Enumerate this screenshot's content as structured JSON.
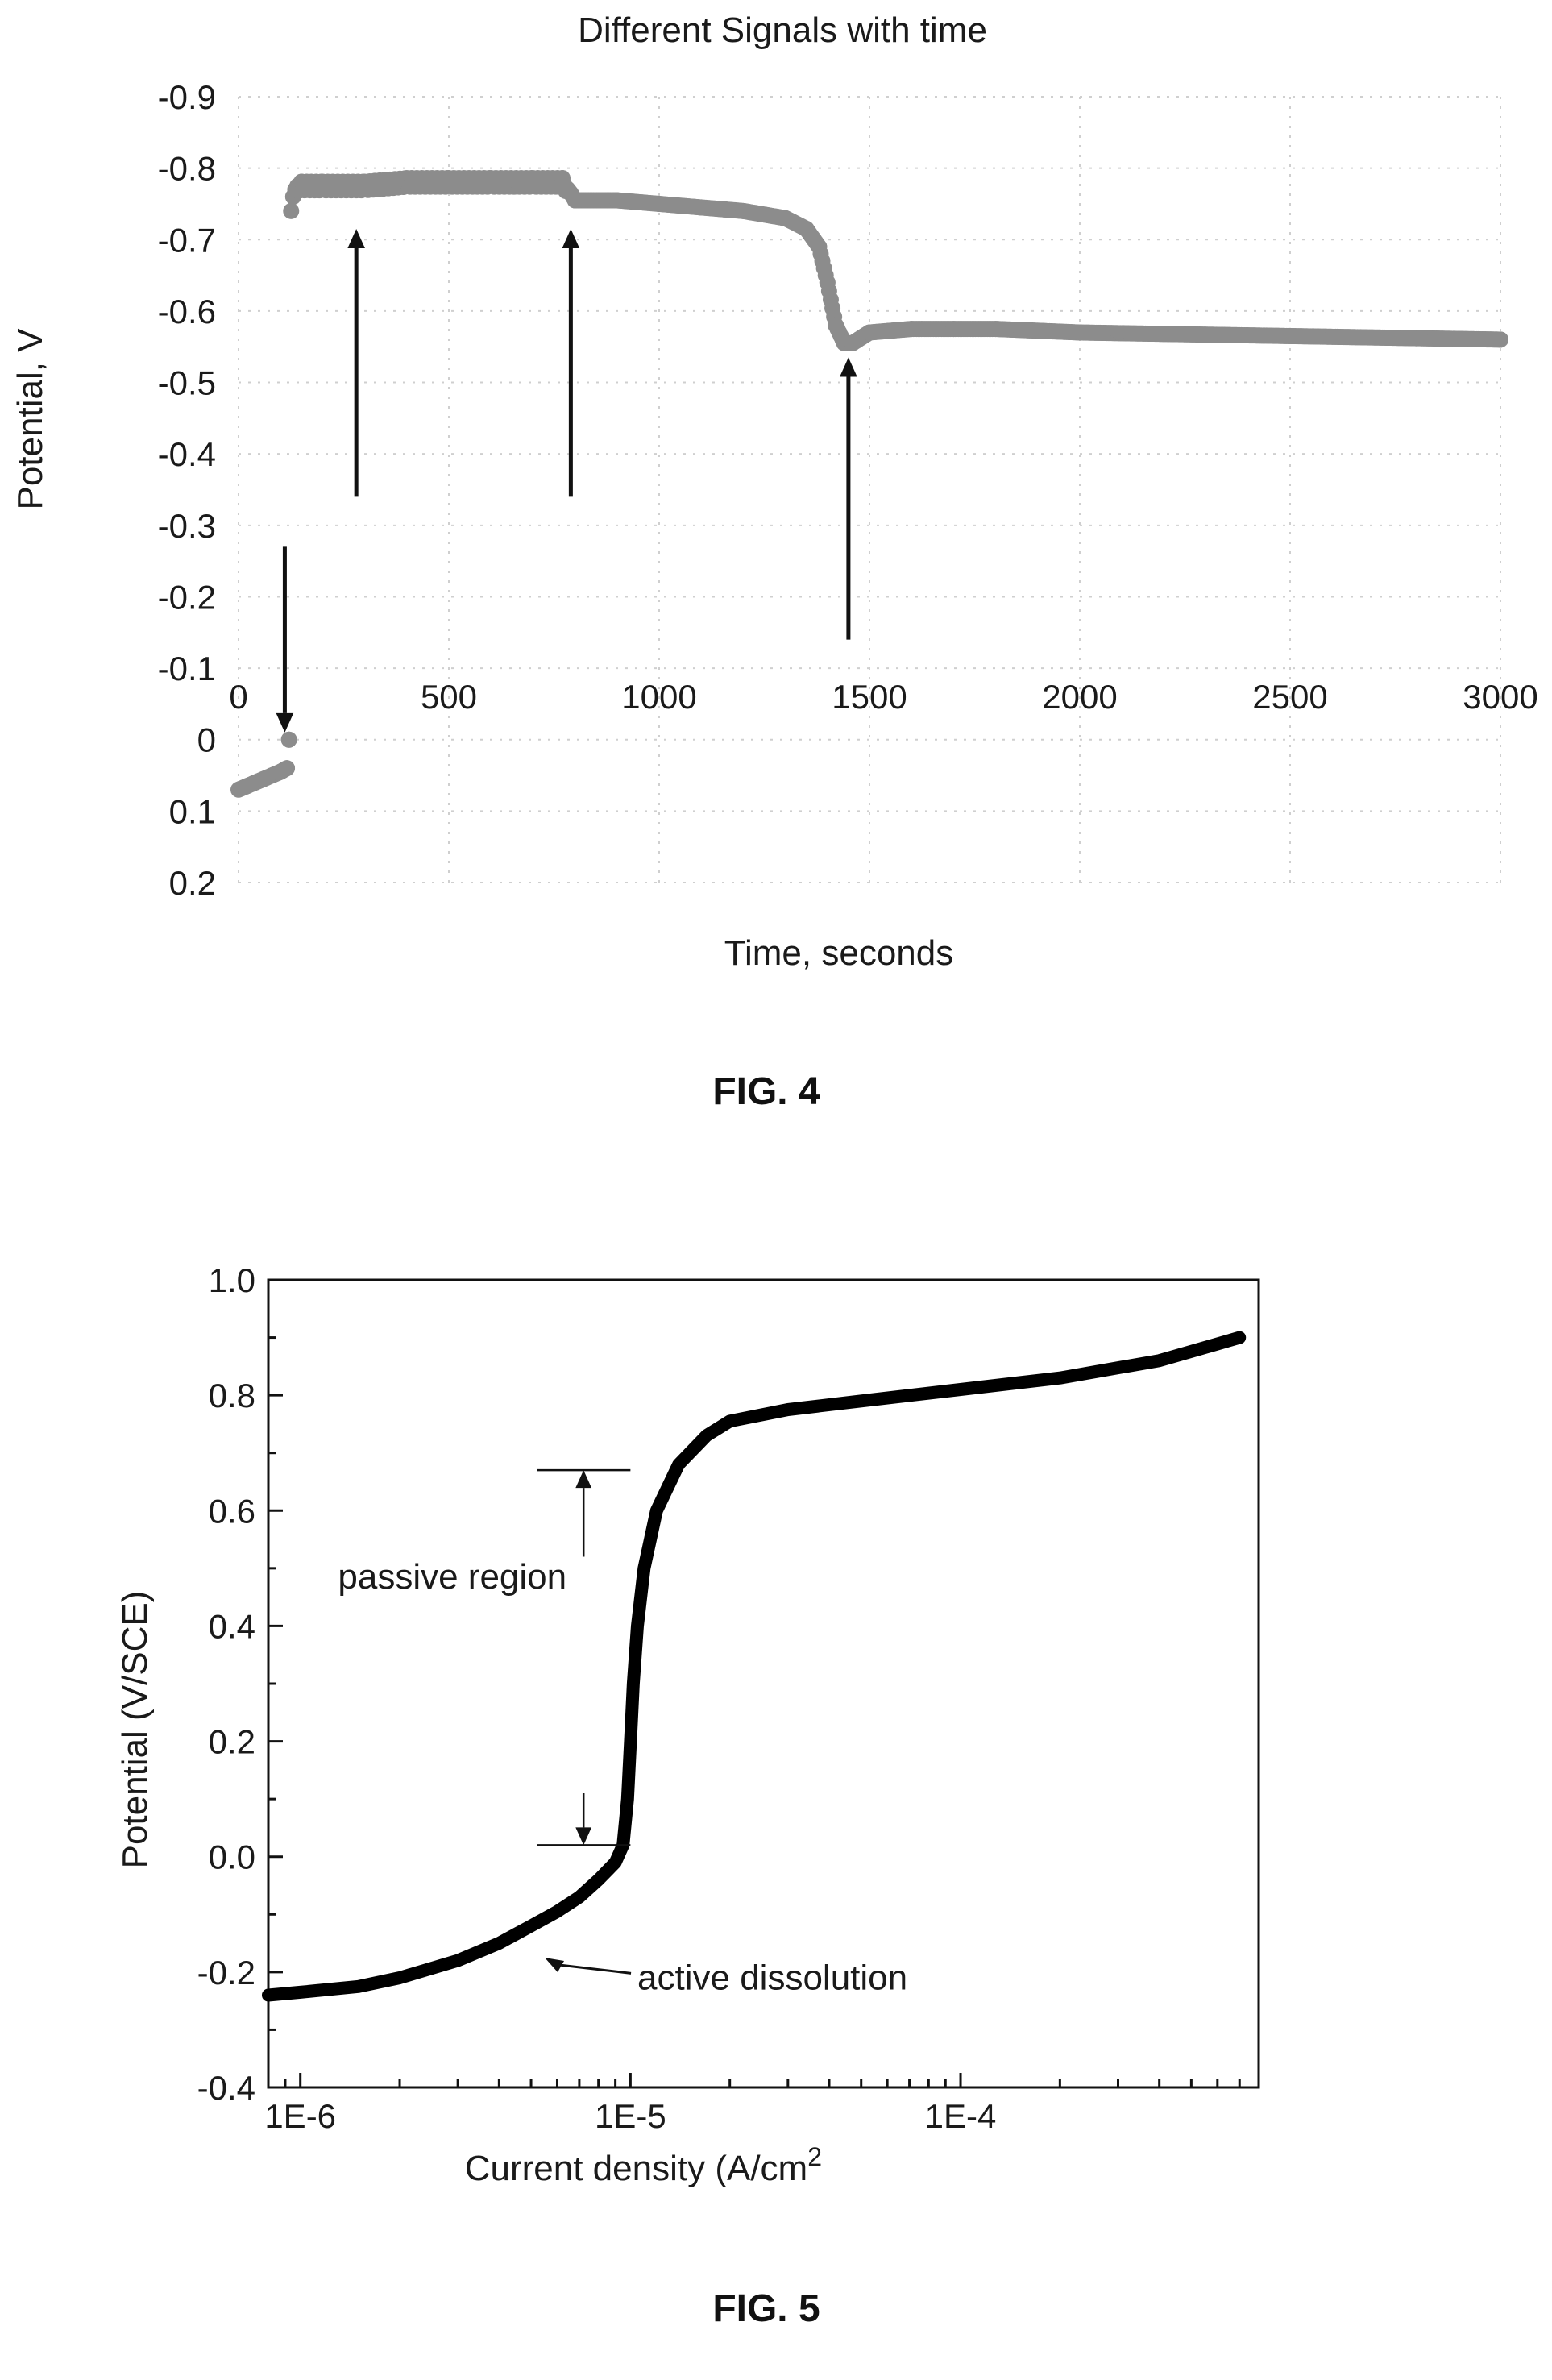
{
  "figures": [
    {
      "caption": "FIG. 4",
      "chart_data": {
        "type": "scatter",
        "title": "Different Signals with time",
        "xlabel": "Time, seconds",
        "ylabel": "Potential, V",
        "xlim": [
          0,
          3000
        ],
        "ylim": [
          0.2,
          -0.9
        ],
        "y_axis_inverted": true,
        "grid": true,
        "x_ticks": [
          0,
          500,
          1000,
          1500,
          2000,
          2500,
          3000
        ],
        "x_tick_labels": [
          "0",
          "500",
          "1000",
          "1500",
          "2000",
          "2500",
          "3000"
        ],
        "y_ticks": [
          -0.9,
          -0.8,
          -0.7,
          -0.6,
          -0.5,
          -0.4,
          -0.3,
          -0.2,
          -0.1,
          0,
          0.1,
          0.2
        ],
        "y_tick_labels": [
          "-0.9",
          "-0.8",
          "-0.7",
          "-0.6",
          "-0.5",
          "-0.4",
          "-0.3",
          "-0.2",
          "-0.1",
          "0",
          "0.1",
          "0.2"
        ],
        "series_color": "#8c8c8c",
        "series": [
          {
            "x": [
              0,
              20,
              40,
              60,
              80,
              100,
              115,
              120,
              125,
              130,
              135,
              140,
              150,
              200,
              300,
              400,
              500,
              600,
              700,
              770,
              790,
              800,
              900,
              1000,
              1100,
              1200,
              1300,
              1350,
              1380,
              1400,
              1420,
              1440,
              1460,
              1500,
              1600,
              1700,
              1800,
              2000,
              2200,
              2500,
              2800,
              3000
            ],
            "y": [
              0.07,
              0.065,
              0.06,
              0.055,
              0.05,
              0.045,
              0.04,
              0.0,
              -0.74,
              -0.76,
              -0.77,
              -0.775,
              -0.775,
              -0.775,
              -0.775,
              -0.78,
              -0.78,
              -0.78,
              -0.78,
              -0.78,
              -0.765,
              -0.755,
              -0.755,
              -0.75,
              -0.745,
              -0.74,
              -0.73,
              -0.715,
              -0.69,
              -0.64,
              -0.58,
              -0.555,
              -0.555,
              -0.57,
              -0.575,
              -0.575,
              -0.575,
              -0.57,
              -0.568,
              -0.565,
              -0.562,
              -0.56
            ]
          }
        ],
        "annotations": [
          {
            "type": "arrow",
            "x": 110,
            "y_from": -0.27,
            "y_to": -0.01,
            "direction": "down"
          },
          {
            "type": "arrow",
            "x": 280,
            "y_from": -0.34,
            "y_to": -0.715,
            "direction": "up"
          },
          {
            "type": "arrow",
            "x": 790,
            "y_from": -0.34,
            "y_to": -0.715,
            "direction": "up"
          },
          {
            "type": "arrow",
            "x": 1450,
            "y_from": -0.14,
            "y_to": -0.535,
            "direction": "up"
          }
        ]
      }
    },
    {
      "caption": "FIG. 5",
      "chart_data": {
        "type": "line",
        "xlabel_prefix": "Current density (A/cm",
        "xlabel_sup": "2",
        "ylabel": "Potential (V/SCE)",
        "x_scale": "log",
        "xlim": [
          8e-07,
          0.0008
        ],
        "ylim": [
          -0.4,
          1.0
        ],
        "grid": false,
        "x_ticks": [
          1e-06,
          1e-05,
          0.0001
        ],
        "x_tick_labels": [
          "1E-6",
          "1E-5",
          "1E-4"
        ],
        "y_ticks": [
          -0.4,
          -0.2,
          0.0,
          0.2,
          0.4,
          0.6,
          0.8,
          1.0
        ],
        "y_tick_labels": [
          "-0.4",
          "-0.2",
          "0.0",
          "0.2",
          "0.4",
          "0.6",
          "0.8",
          "1.0"
        ],
        "series_color": "#000000",
        "series": [
          {
            "x": [
              8e-07,
              1e-06,
              1.5e-06,
              2e-06,
              3e-06,
              4e-06,
              5e-06,
              6e-06,
              7e-06,
              8e-06,
              9e-06,
              9.5e-06,
              9.8e-06,
              1e-05,
              1.02e-05,
              1.05e-05,
              1.1e-05,
              1.2e-05,
              1.4e-05,
              1.7e-05,
              2e-05,
              3e-05,
              5e-05,
              0.0001,
              0.0002,
              0.0004,
              0.0007
            ],
            "y": [
              -0.24,
              -0.235,
              -0.225,
              -0.21,
              -0.18,
              -0.15,
              -0.12,
              -0.095,
              -0.07,
              -0.04,
              -0.01,
              0.02,
              0.1,
              0.2,
              0.3,
              0.4,
              0.5,
              0.6,
              0.68,
              0.73,
              0.755,
              0.775,
              0.79,
              0.81,
              0.83,
              0.86,
              0.9
            ]
          }
        ],
        "annotations": [
          {
            "id": "passive",
            "text": "passive region",
            "x": 1.3e-06,
            "y": 0.465
          },
          {
            "id": "active",
            "text": "active dissolution",
            "x": 1.05e-05,
            "y": -0.23,
            "arrow_to": [
              5.5e-06,
              -0.175
            ]
          },
          {
            "type": "marker-top",
            "x_from": 5.2e-06,
            "x_to": 1e-05,
            "y": 0.67,
            "arrow_from_y": 0.52
          },
          {
            "type": "marker-bottom",
            "x_from": 5.2e-06,
            "x_to": 1e-05,
            "y": 0.02,
            "arrow_from_y": 0.11
          }
        ]
      }
    }
  ]
}
